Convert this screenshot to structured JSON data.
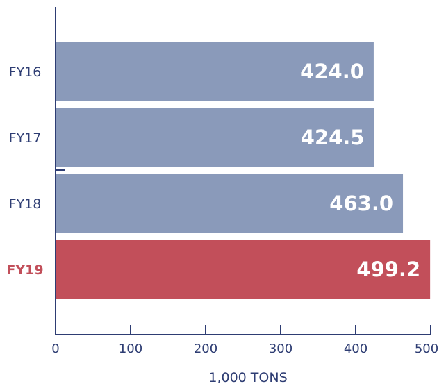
{
  "chart_data": {
    "type": "bar",
    "orientation": "horizontal",
    "categories": [
      "FY16",
      "FY17",
      "FY18",
      "FY19"
    ],
    "values": [
      424.0,
      424.5,
      463.0,
      499.2
    ],
    "value_labels": [
      "424.0",
      "424.5",
      "463.0",
      "499.2"
    ],
    "highlight_category": "FY19",
    "xlabel": "1,000 TONS",
    "xlim": [
      0,
      500
    ],
    "xticks": [
      "0",
      "100",
      "200",
      "300",
      "400",
      "500"
    ],
    "grid": false,
    "colors": {
      "bar": "#8a9aba",
      "highlight_bar": "#c24f5a",
      "category_text": "#2e3d73",
      "highlight_text": "#c24f5a",
      "axis": "#2e3d73",
      "value_text": "#ffffff"
    }
  }
}
